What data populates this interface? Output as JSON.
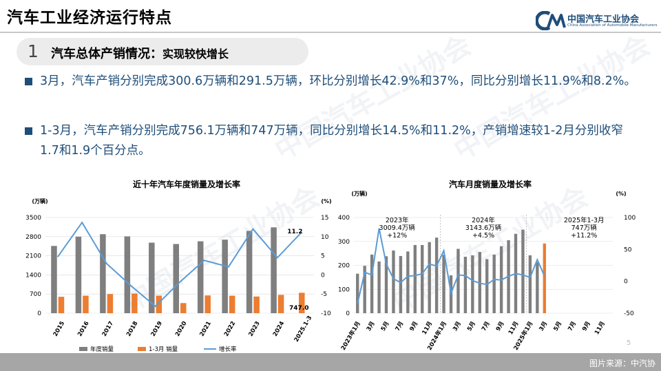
{
  "header": {
    "title": "汽车工业经济运行特点",
    "logo_cn": "中国汽车工业协会",
    "logo_en": "China Association of Automobile Manufacturers"
  },
  "section": {
    "number": "1",
    "title": "汽车总体产销情况：",
    "subtitle": "实现较快增长"
  },
  "bullets": [
    "3月，汽车产销分别完成300.6万辆和291.5万辆，环比分别增长42.9%和37%，同比分别增长11.9%和8.2%。",
    "1-3月，汽车产销分别完成756.1万辆和747万辆，同比分别增长14.5%和11.2%，产销增速较1-2月分别收窄1.7和1.9个百分点。"
  ],
  "watermark": "中国汽车工业协会",
  "footer": {
    "source": "图片来源：中汽协",
    "page": "5"
  },
  "colors": {
    "bar_gray": "#7f7f7f",
    "bar_orange": "#ed7d31",
    "line_blue": "#5b9bd5",
    "text_blue": "#1f4e79"
  },
  "chart_data": [
    {
      "type": "bar",
      "title": "近十年汽车年度销量及增长率",
      "left_unit": "(万辆)",
      "right_unit": "(%)",
      "categories": [
        "2015",
        "2016",
        "2017",
        "2018",
        "2019",
        "2020",
        "2021",
        "2022",
        "2023",
        "2024",
        "2025.1-3"
      ],
      "left_ticks": [
        "0",
        "700",
        "1400",
        "2100",
        "2800",
        "3500"
      ],
      "right_ticks": [
        "-10",
        "-5",
        "0",
        "5",
        "10",
        "15"
      ],
      "ylim": [
        0,
        3500
      ],
      "y2lim": [
        -10,
        15
      ],
      "series": [
        {
          "name": "年度销量",
          "kind": "bar",
          "color": "#7f7f7f",
          "values": [
            2460,
            2800,
            2890,
            2810,
            2580,
            2530,
            2630,
            2690,
            3010,
            3140,
            null
          ]
        },
        {
          "name": "1-3月 销量",
          "kind": "bar",
          "color": "#ed7d31",
          "values": [
            600,
            640,
            700,
            720,
            640,
            370,
            650,
            640,
            610,
            670,
            747
          ]
        },
        {
          "name": "增长率",
          "kind": "line",
          "axis": "right",
          "color": "#5b9bd5",
          "values": [
            4.7,
            13.7,
            3.0,
            -2.8,
            -8.2,
            -1.9,
            3.8,
            2.1,
            12.0,
            4.5,
            11.2
          ]
        }
      ],
      "annotations": [
        "11.2",
        "747.0"
      ]
    },
    {
      "type": "bar",
      "title": "汽车月度销量及增长率",
      "left_unit": "(万辆)",
      "right_unit": "(%)",
      "categories": [
        "2023年1月",
        "2月",
        "3月",
        "4月",
        "5月",
        "6月",
        "7月",
        "8月",
        "9月",
        "10月",
        "11月",
        "12月",
        "2024年1月",
        "2月",
        "3月",
        "4月",
        "5月",
        "6月",
        "7月",
        "8月",
        "9月",
        "10月",
        "11月",
        "12月",
        "2025年1月",
        "2月",
        "3月",
        "4月",
        "5月",
        "6月",
        "7月",
        "8月",
        "9月",
        "10月",
        "11月",
        "12月"
      ],
      "tick_labels": [
        "2023年1月",
        "3月",
        "5月",
        "7月",
        "9月",
        "11月",
        "2024年1月",
        "3月",
        "5月",
        "7月",
        "9月",
        "11月",
        "2025年1月",
        "3月",
        "5月",
        "7月",
        "9月",
        "11月"
      ],
      "left_ticks": [
        "0",
        "100",
        "200",
        "300",
        "400"
      ],
      "right_ticks": [
        "-50",
        "0",
        "50",
        "100"
      ],
      "ylim": [
        0,
        400
      ],
      "y2lim": [
        -50,
        100
      ],
      "series": [
        {
          "name": "月度销量",
          "kind": "bar",
          "color": "#7f7f7f",
          "values": [
            165,
            198,
            245,
            216,
            238,
            262,
            239,
            258,
            285,
            285,
            297,
            316,
            244,
            158,
            269,
            236,
            242,
            256,
            226,
            245,
            280,
            305,
            332,
            349,
            242,
            213,
            null,
            null,
            null,
            null,
            null,
            null,
            null,
            null,
            null,
            null
          ]
        },
        {
          "name": "2025年3月销量",
          "kind": "bar",
          "color": "#ed7d31",
          "values": [
            null,
            null,
            null,
            null,
            null,
            null,
            null,
            null,
            null,
            null,
            null,
            null,
            null,
            null,
            null,
            null,
            null,
            null,
            null,
            null,
            null,
            null,
            null,
            null,
            null,
            null,
            291.5,
            null,
            null,
            null,
            null,
            null,
            null,
            null,
            null,
            null
          ]
        },
        {
          "name": "增长率",
          "kind": "line",
          "axis": "right",
          "color": "#5b9bd5",
          "values": [
            -35,
            14,
            10,
            83,
            27,
            4,
            -2,
            8,
            9,
            12,
            27,
            24,
            48,
            -19,
            10,
            9,
            1,
            -3,
            -5,
            3,
            2,
            8,
            12,
            10,
            6,
            34,
            8.2,
            null,
            null,
            null,
            null,
            null,
            null,
            null,
            null,
            null
          ]
        }
      ],
      "period_notes": [
        {
          "label": "2023年",
          "value": "3009.4万辆",
          "growth": "+12%"
        },
        {
          "label": "2024年",
          "value": "3143.6万辆",
          "growth": "+4.5%"
        },
        {
          "label": "2025年1-3月",
          "value": "747万辆",
          "growth": "+11.2%"
        }
      ]
    }
  ]
}
